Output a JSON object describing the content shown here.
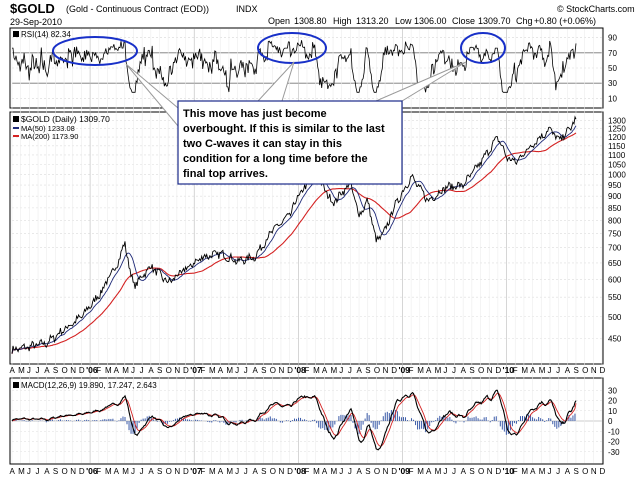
{
  "header": {
    "symbol": "$GOLD",
    "description": "(Gold - Continuous Contract (EOD))",
    "exchange": "INDX",
    "date": "29-Sep-2010",
    "watermark": "© StockCharts.com",
    "open_label": "Open",
    "open": "1308.80",
    "high_label": "High",
    "high": "1313.20",
    "low_label": "Low",
    "low": "1306.00",
    "close_label": "Close",
    "close": "1309.70",
    "chg_label": "Chg",
    "chg": "+0.80 (+0.06%)"
  },
  "rsi_panel": {
    "legend_text": "RSI(14) 82.34",
    "ticks": [
      "90",
      "70",
      "50",
      "30",
      "10"
    ],
    "overbought": 70,
    "oversold": 30
  },
  "price_panel": {
    "legend": [
      {
        "text": "$GOLD (Daily) 1309.70",
        "color": "#000000"
      },
      {
        "text": "MA(50) 1233.08",
        "color": "#1f2a78"
      },
      {
        "text": "MA(200) 1173.90",
        "color": "#d42222"
      }
    ],
    "ticks": [
      "1300",
      "1250",
      "1200",
      "1150",
      "1100",
      "1050",
      "1000",
      "950",
      "900",
      "850",
      "800",
      "750",
      "700",
      "650",
      "600",
      "550",
      "500",
      "450"
    ]
  },
  "macd_panel": {
    "legend_text": "MACD(12,26,9) 19.890, 17.247, 2.643",
    "ticks": [
      "30",
      "20",
      "10",
      "0",
      "-10",
      "-20",
      "-30"
    ]
  },
  "annotation": {
    "lines": [
      "This move has just become",
      "overbought. If this is similar to the last",
      "two C-waves it can stay in this",
      "condition for a long time before the",
      "final top arrives."
    ]
  },
  "x_axis": {
    "labels": [
      "A",
      "M",
      "J",
      "J",
      "A",
      "S",
      "O",
      "N",
      "D",
      "'06",
      "F",
      "M",
      "A",
      "M",
      "J",
      "J",
      "A",
      "S",
      "O",
      "N",
      "D",
      "'07",
      "F",
      "M",
      "A",
      "M",
      "J",
      "J",
      "A",
      "S",
      "O",
      "N",
      "D",
      "'08",
      "F",
      "M",
      "A",
      "M",
      "J",
      "J",
      "A",
      "S",
      "O",
      "N",
      "D",
      "'09",
      "F",
      "M",
      "A",
      "M",
      "J",
      "J",
      "A",
      "S",
      "O",
      "N",
      "D",
      "'10",
      "F",
      "M",
      "A",
      "M",
      "J",
      "J",
      "A",
      "S",
      "O",
      "N",
      "D"
    ]
  },
  "chart_data": {
    "type": "line",
    "x_range": [
      "2005-04",
      "2010-12"
    ],
    "price": {
      "points": [
        [
          "2005-04",
          425
        ],
        [
          "2005-06",
          432
        ],
        [
          "2005-08",
          440
        ],
        [
          "2005-10",
          470
        ],
        [
          "2005-12",
          500
        ],
        [
          "2006-02",
          555
        ],
        [
          "2006-04",
          640
        ],
        [
          "2006-05",
          715
        ],
        [
          "2006-06",
          580
        ],
        [
          "2006-08",
          640
        ],
        [
          "2006-10",
          590
        ],
        [
          "2006-12",
          630
        ],
        [
          "2007-02",
          670
        ],
        [
          "2007-04",
          680
        ],
        [
          "2007-06",
          655
        ],
        [
          "2007-08",
          670
        ],
        [
          "2007-10",
          760
        ],
        [
          "2007-12",
          820
        ],
        [
          "2008-01",
          900
        ],
        [
          "2008-03",
          1000
        ],
        [
          "2008-05",
          870
        ],
        [
          "2008-07",
          960
        ],
        [
          "2008-08",
          820
        ],
        [
          "2008-09",
          880
        ],
        [
          "2008-10",
          720
        ],
        [
          "2008-11",
          760
        ],
        [
          "2008-12",
          850
        ],
        [
          "2009-02",
          990
        ],
        [
          "2009-04",
          880
        ],
        [
          "2009-06",
          940
        ],
        [
          "2009-08",
          950
        ],
        [
          "2009-10",
          1060
        ],
        [
          "2009-12",
          1200
        ],
        [
          "2010-01",
          1090
        ],
        [
          "2010-02",
          1060
        ],
        [
          "2010-04",
          1160
        ],
        [
          "2010-06",
          1250
        ],
        [
          "2010-07",
          1180
        ],
        [
          "2010-08",
          1230
        ],
        [
          "2010-09",
          1310
        ]
      ],
      "ma50_end": 1233.08,
      "ma200_end": 1173.9
    },
    "rsi": {
      "ylim": [
        0,
        100
      ],
      "last": 82.34
    },
    "macd": {
      "ylim": [
        -40,
        40
      ],
      "macd_last": 19.89,
      "signal_last": 17.247,
      "hist_last": 2.643
    }
  }
}
